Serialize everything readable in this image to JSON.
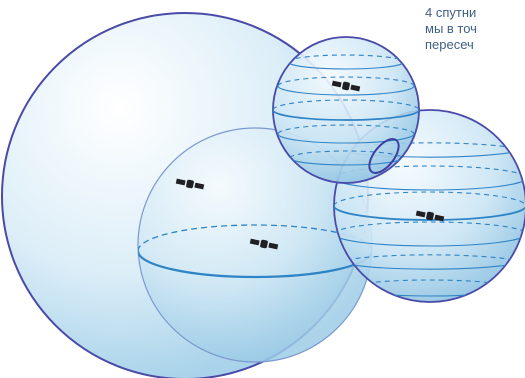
{
  "caption": {
    "lines": [
      "4 спутни",
      "мы в точ",
      "пересеч"
    ]
  },
  "colors": {
    "sphere_outline": "#4a4aa8",
    "sphere_fill_light": "#ffffff",
    "sphere_fill_dark": "#a9d3ea",
    "latitude_line": "#2f84c6",
    "intersection_ellipse": "#3f3fa2",
    "satellite": "#1f1f24",
    "caption_text": "#3f5f85"
  },
  "icons": {
    "satellite": "satellite-icon"
  }
}
